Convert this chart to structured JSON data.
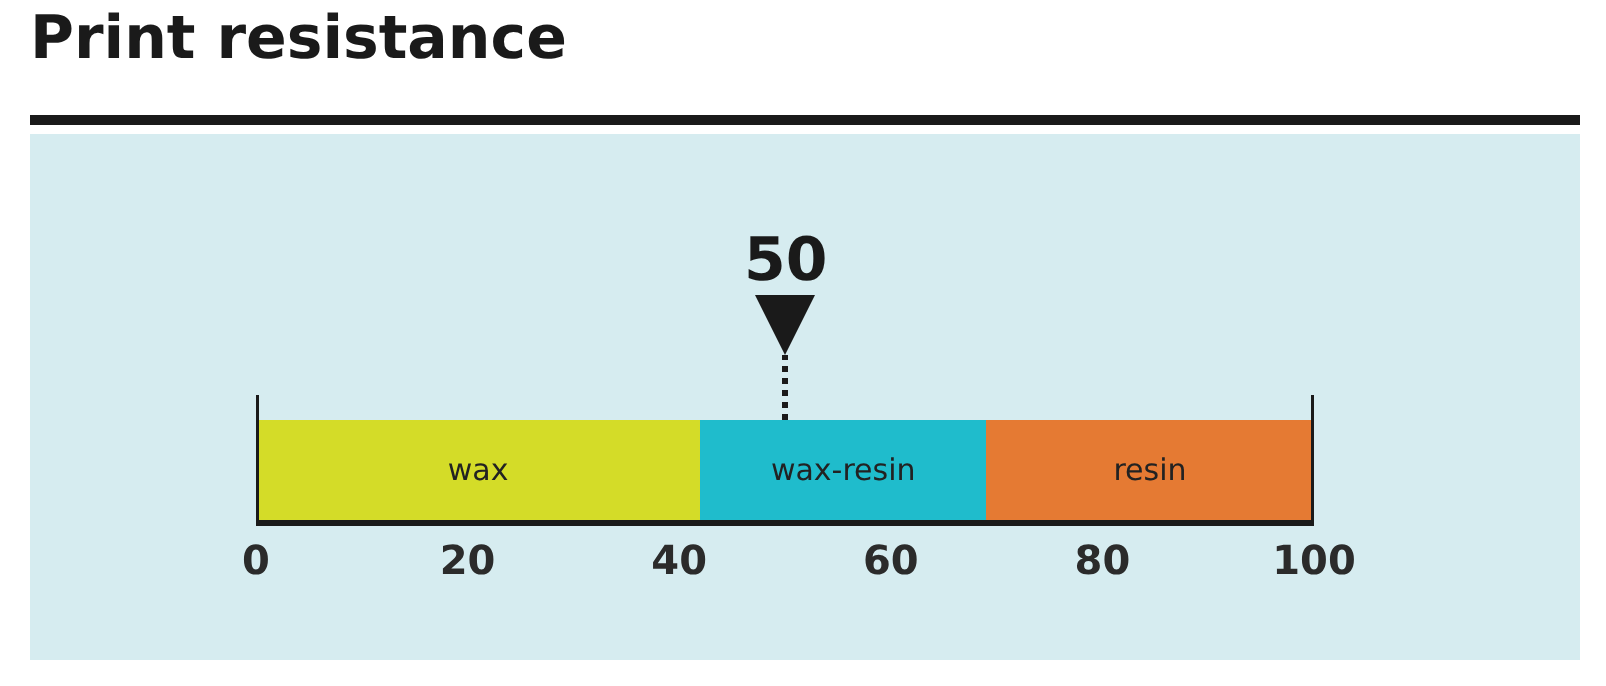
{
  "chart_data": {
    "type": "bar",
    "orientation": "horizontal",
    "stacked": true,
    "title": "Print resistance",
    "categories": [
      null
    ],
    "series": [
      {
        "name": "wax",
        "color": "#d4dc28",
        "values": [
          42
        ]
      },
      {
        "name": "wax-resin",
        "color": "#1fbccc",
        "values": [
          27
        ]
      },
      {
        "name": "resin",
        "color": "#e57a33",
        "values": [
          31
        ]
      }
    ],
    "xlim": [
      0,
      100
    ],
    "xticks": [
      0,
      20,
      40,
      60,
      80,
      100
    ],
    "ref_lines": [
      {
        "axis": "x",
        "value": 50,
        "label": "50",
        "line_style": "dotted"
      }
    ]
  }
}
